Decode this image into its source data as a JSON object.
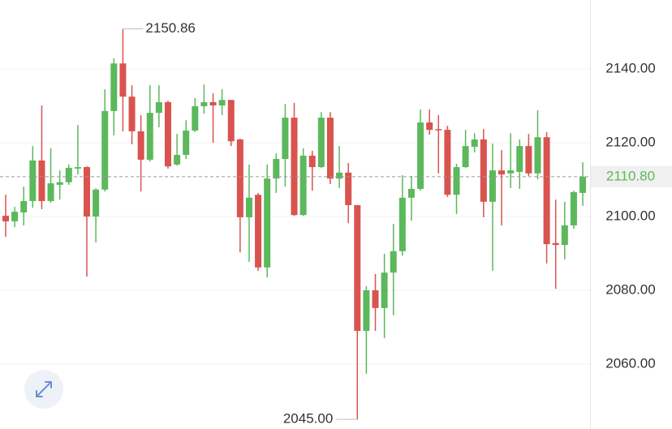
{
  "chart_data": {
    "type": "candlestick",
    "up_color": "#5cb85c",
    "down_color": "#d9534f",
    "grid": true,
    "ylim": [
      2042.4,
      2158.7
    ],
    "yticks": [
      {
        "value": 2060,
        "label": "2060.00"
      },
      {
        "value": 2080,
        "label": "2080.00"
      },
      {
        "value": 2100,
        "label": "2100.00"
      },
      {
        "value": 2120,
        "label": "2120.00"
      },
      {
        "value": 2140,
        "label": "2140.00"
      }
    ],
    "high_marker": 2150.86,
    "low_marker": {
      "value": 2045,
      "label": "2045.00"
    },
    "last_price": {
      "value": 2110.8,
      "label": "2110.80"
    },
    "open": [
      2100.2,
      2098.7,
      2101.1,
      2104.2,
      2115.2,
      2104.2,
      2108.6,
      2109.3,
      2113.0,
      2113.4,
      2100.0,
      2107.3,
      2128.6,
      2141.5,
      2132.5,
      2123.1,
      2115.4,
      2128.1,
      2131.0,
      2114.1,
      2116.7,
      2123.3,
      2129.9,
      2131.0,
      2130.1,
      2131.6,
      2120.9,
      2099.8,
      2105.9,
      2086.2,
      2110.3,
      2115.6,
      2126.8,
      2100.4,
      2116.5,
      2113.4,
      2126.8,
      2110.3,
      2111.9,
      2103.1,
      2069.0,
      2080.0,
      2075.2,
      2084.8,
      2090.6,
      2105.1,
      2107.5,
      2125.5,
      2123.7,
      2123.5,
      2105.9,
      2113.4,
      2118.9,
      2120.9,
      2104.0,
      2112.5,
      2111.7,
      2112.1,
      2119.1,
      2111.7,
      2121.5,
      2092.8,
      2092.3,
      2097.6,
      2106.4
    ],
    "high": [
      2105.9,
      2102.6,
      2108.1,
      2119.1,
      2130.1,
      2118.5,
      2112.5,
      2114.1,
      2124.8,
      2113.6,
      2107.7,
      2134.5,
      2142.9,
      2150.86,
      2135.6,
      2127.5,
      2135.6,
      2135.6,
      2131.4,
      2122.4,
      2126.1,
      2132.1,
      2135.8,
      2133.4,
      2134.5,
      2131.6,
      2121.1,
      2114.1,
      2106.4,
      2114.1,
      2117.1,
      2130.5,
      2130.8,
      2118.5,
      2117.8,
      2128.3,
      2128.3,
      2119.1,
      2114.5,
      2103.1,
      2081.1,
      2084.4,
      2089.9,
      2098.0,
      2111.2,
      2111.0,
      2129.0,
      2129.0,
      2127.5,
      2124.6,
      2114.3,
      2123.5,
      2122.6,
      2123.7,
      2119.8,
      2118.0,
      2122.6,
      2120.9,
      2122.4,
      2128.8,
      2122.9,
      2104.6,
      2104.0,
      2107.0,
      2114.7
    ],
    "low": [
      2094.5,
      2097.1,
      2097.6,
      2102.4,
      2102.0,
      2103.7,
      2104.6,
      2108.6,
      2111.4,
      2083.7,
      2093.0,
      2106.8,
      2122.0,
      2123.1,
      2119.6,
      2106.8,
      2114.9,
      2124.2,
      2113.0,
      2113.8,
      2115.6,
      2122.9,
      2127.9,
      2120.0,
      2127.5,
      2119.1,
      2090.3,
      2087.7,
      2085.3,
      2083.5,
      2106.4,
      2108.1,
      2100.2,
      2100.2,
      2107.0,
      2113.2,
      2108.8,
      2107.7,
      2098.2,
      2045,
      2057.4,
      2069.0,
      2067.0,
      2073.2,
      2089.4,
      2098.9,
      2107.0,
      2122.2,
      2111.7,
      2105.3,
      2100.7,
      2113.2,
      2117.4,
      2099.8,
      2085.3,
      2097.6,
      2107.7,
      2107.5,
      2111.0,
      2110.1,
      2087.3,
      2080.4,
      2088.4,
      2096.7,
      2102.9
    ],
    "close": [
      2098.7,
      2101.3,
      2104.2,
      2115.2,
      2104.2,
      2109.0,
      2109.3,
      2113.2,
      2113.4,
      2100.0,
      2107.3,
      2128.6,
      2141.5,
      2132.5,
      2123.1,
      2115.4,
      2128.1,
      2131.0,
      2113.6,
      2116.7,
      2123.3,
      2129.9,
      2131.0,
      2130.1,
      2131.6,
      2120.4,
      2099.8,
      2105.1,
      2086.2,
      2110.3,
      2115.6,
      2126.8,
      2100.4,
      2116.5,
      2113.4,
      2126.8,
      2110.3,
      2111.9,
      2103.1,
      2069.0,
      2080.0,
      2075.2,
      2084.8,
      2090.6,
      2105.1,
      2107.5,
      2125.5,
      2123.5,
      2123.5,
      2105.9,
      2113.4,
      2119.1,
      2120.9,
      2104.0,
      2112.5,
      2111.4,
      2112.5,
      2119.1,
      2111.7,
      2121.5,
      2092.5,
      2092.3,
      2097.6,
      2106.6,
      2110.8
    ]
  }
}
